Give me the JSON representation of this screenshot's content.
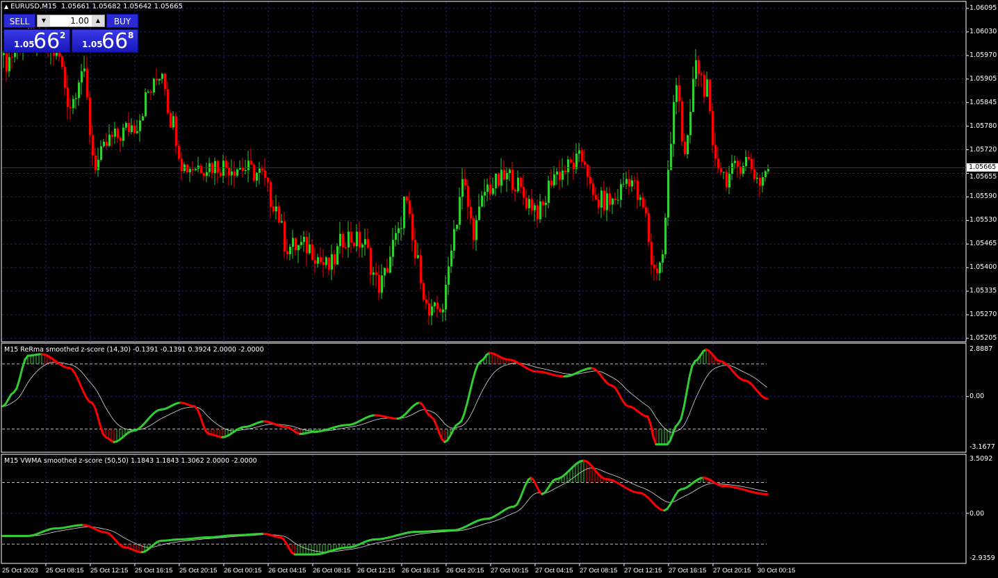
{
  "header": {
    "symbol": "EURUSD,M15",
    "ohlc": "1.05661 1.05682 1.05642 1.05665"
  },
  "trade_panel": {
    "sell_label": "SELL",
    "buy_label": "BUY",
    "lot_value": "1.00",
    "sell_price": {
      "prefix": "1.05",
      "big": "66",
      "sup": "2"
    },
    "buy_price": {
      "prefix": "1.05",
      "big": "66",
      "sup": "8"
    }
  },
  "price_axis": {
    "labels": [
      "1.06095",
      "1.06030",
      "1.05970",
      "1.05905",
      "1.05845",
      "1.05780",
      "1.05720",
      "1.05655",
      "1.05590",
      "1.05530",
      "1.05465",
      "1.05400",
      "1.05335",
      "1.05270",
      "1.05205"
    ],
    "current_price": "1.05665"
  },
  "time_axis": {
    "labels": [
      "25 Oct 2023",
      "25 Oct 08:15",
      "25 Oct 12:15",
      "25 Oct 16:15",
      "25 Oct 20:15",
      "26 Oct 00:15",
      "26 Oct 04:15",
      "26 Oct 08:15",
      "26 Oct 12:15",
      "26 Oct 16:15",
      "26 Oct 20:15",
      "27 Oct 00:15",
      "27 Oct 04:15",
      "27 Oct 08:15",
      "27 Oct 12:15",
      "27 Oct 16:15",
      "27 Oct 20:15",
      "30 Oct 00:15"
    ]
  },
  "indicators": [
    {
      "label": "M15 ReRma smoothed z-score (14,30) -0.1391 -0.1391 0.3924 2.0000 -2.0000",
      "axis_max": "2.8887",
      "axis_zero": "0.00",
      "axis_min": "-3.1677"
    },
    {
      "label": "M15 VWMA smoothed z-score (50,50) 1.1843 1.1843 1.3062 2.0000 -2.0000",
      "axis_max": "3.5092",
      "axis_zero": "0.00",
      "axis_min": "-2.9359"
    }
  ],
  "colors": {
    "up": "#32cd32",
    "down": "#ff0000",
    "grid": "#1a1a9c",
    "signal": "#dddddd",
    "axis": "#ffffff",
    "current_line": "#2020d0"
  },
  "chart_data": [
    {
      "type": "candlestick",
      "symbol": "EURUSD",
      "timeframe": "M15",
      "ylim": [
        1.05205,
        1.06095
      ],
      "bars": 276,
      "close_keypoints": [
        [
          0,
          1.05949
        ],
        [
          7,
          1.06005
        ],
        [
          19,
          1.05977
        ],
        [
          24,
          1.05836
        ],
        [
          28,
          1.0593
        ],
        [
          33,
          1.05677
        ],
        [
          39,
          1.05743
        ],
        [
          47,
          1.0578
        ],
        [
          53,
          1.05874
        ],
        [
          57,
          1.0593
        ],
        [
          60,
          1.05799
        ],
        [
          65,
          1.05668
        ],
        [
          74,
          1.05672
        ],
        [
          84,
          1.05668
        ],
        [
          92,
          1.05649
        ],
        [
          97,
          1.05574
        ],
        [
          102,
          1.05452
        ],
        [
          109,
          1.05452
        ],
        [
          117,
          1.05396
        ],
        [
          123,
          1.0548
        ],
        [
          129,
          1.05462
        ],
        [
          135,
          1.05349
        ],
        [
          142,
          1.0548
        ],
        [
          144,
          1.05574
        ],
        [
          149,
          1.05405
        ],
        [
          153,
          1.05265
        ],
        [
          158,
          1.05293
        ],
        [
          162,
          1.05499
        ],
        [
          165,
          1.05621
        ],
        [
          169,
          1.05499
        ],
        [
          174,
          1.05612
        ],
        [
          182,
          1.0564
        ],
        [
          189,
          1.05574
        ],
        [
          193,
          1.05546
        ],
        [
          198,
          1.05649
        ],
        [
          209,
          1.05687
        ],
        [
          212,
          1.05574
        ],
        [
          219,
          1.05574
        ],
        [
          225,
          1.0564
        ],
        [
          230,
          1.05555
        ],
        [
          234,
          1.05387
        ],
        [
          237,
          1.05424
        ],
        [
          239,
          1.05649
        ],
        [
          242,
          1.05911
        ],
        [
          245,
          1.05687
        ],
        [
          249,
          1.05939
        ],
        [
          253,
          1.05874
        ],
        [
          255,
          1.05705
        ],
        [
          260,
          1.0564
        ],
        [
          267,
          1.05687
        ],
        [
          272,
          1.0563
        ],
        [
          275,
          1.05665
        ]
      ]
    },
    {
      "type": "line",
      "title": "M15 ReRma smoothed z-score (14,30)",
      "ylim": [
        -3.1677,
        2.8887
      ],
      "levels": [
        2,
        -2
      ],
      "keypoints": [
        [
          0,
          -0.6
        ],
        [
          4,
          0.26
        ],
        [
          9,
          2.5
        ],
        [
          14,
          2.6
        ],
        [
          24,
          1.75
        ],
        [
          32,
          -0.38
        ],
        [
          37,
          -2.5
        ],
        [
          40,
          -2.8
        ],
        [
          47,
          -2.1
        ],
        [
          57,
          -0.8
        ],
        [
          64,
          -0.38
        ],
        [
          69,
          -0.6
        ],
        [
          74,
          -2.3
        ],
        [
          79,
          -2.5
        ],
        [
          87,
          -1.87
        ],
        [
          94,
          -1.53
        ],
        [
          102,
          -1.87
        ],
        [
          107,
          -2.3
        ],
        [
          112,
          -2.17
        ],
        [
          124,
          -1.75
        ],
        [
          134,
          -1.15
        ],
        [
          142,
          -1.36
        ],
        [
          150,
          -0.38
        ],
        [
          154,
          -1.23
        ],
        [
          159,
          -2.8
        ],
        [
          164,
          -1.66
        ],
        [
          172,
          2.17
        ],
        [
          175,
          2.68
        ],
        [
          182,
          2.26
        ],
        [
          192,
          1.53
        ],
        [
          202,
          1.23
        ],
        [
          212,
          1.74
        ],
        [
          219,
          0.68
        ],
        [
          225,
          -0.6
        ],
        [
          232,
          -1.23
        ],
        [
          235,
          -2.94
        ],
        [
          239,
          -2.94
        ],
        [
          243,
          -1.66
        ],
        [
          249,
          2.17
        ],
        [
          253,
          2.89
        ],
        [
          258,
          2.17
        ],
        [
          267,
          0.98
        ],
        [
          275,
          -0.14
        ]
      ]
    },
    {
      "type": "line",
      "title": "M15 VWMA smoothed z-score (50,50)",
      "ylim": [
        -2.9359,
        3.5092
      ],
      "levels": [
        2,
        -2
      ],
      "keypoints": [
        [
          0,
          -1.47
        ],
        [
          9,
          -1.47
        ],
        [
          19,
          -0.98
        ],
        [
          29,
          -0.76
        ],
        [
          37,
          -1.24
        ],
        [
          44,
          -2.22
        ],
        [
          50,
          -2.53
        ],
        [
          57,
          -1.78
        ],
        [
          64,
          -1.69
        ],
        [
          74,
          -1.56
        ],
        [
          84,
          -1.42
        ],
        [
          94,
          -1.33
        ],
        [
          100,
          -1.56
        ],
        [
          105,
          -2.67
        ],
        [
          112,
          -2.67
        ],
        [
          124,
          -2.22
        ],
        [
          134,
          -1.69
        ],
        [
          149,
          -1.2
        ],
        [
          162,
          -1.1
        ],
        [
          174,
          -0.36
        ],
        [
          184,
          0.44
        ],
        [
          190,
          2.31
        ],
        [
          194,
          1.24
        ],
        [
          199,
          2.22
        ],
        [
          209,
          3.42
        ],
        [
          217,
          2.22
        ],
        [
          229,
          1.33
        ],
        [
          238,
          0.18
        ],
        [
          244,
          1.56
        ],
        [
          252,
          2.31
        ],
        [
          259,
          1.78
        ],
        [
          275,
          1.24
        ]
      ]
    }
  ]
}
